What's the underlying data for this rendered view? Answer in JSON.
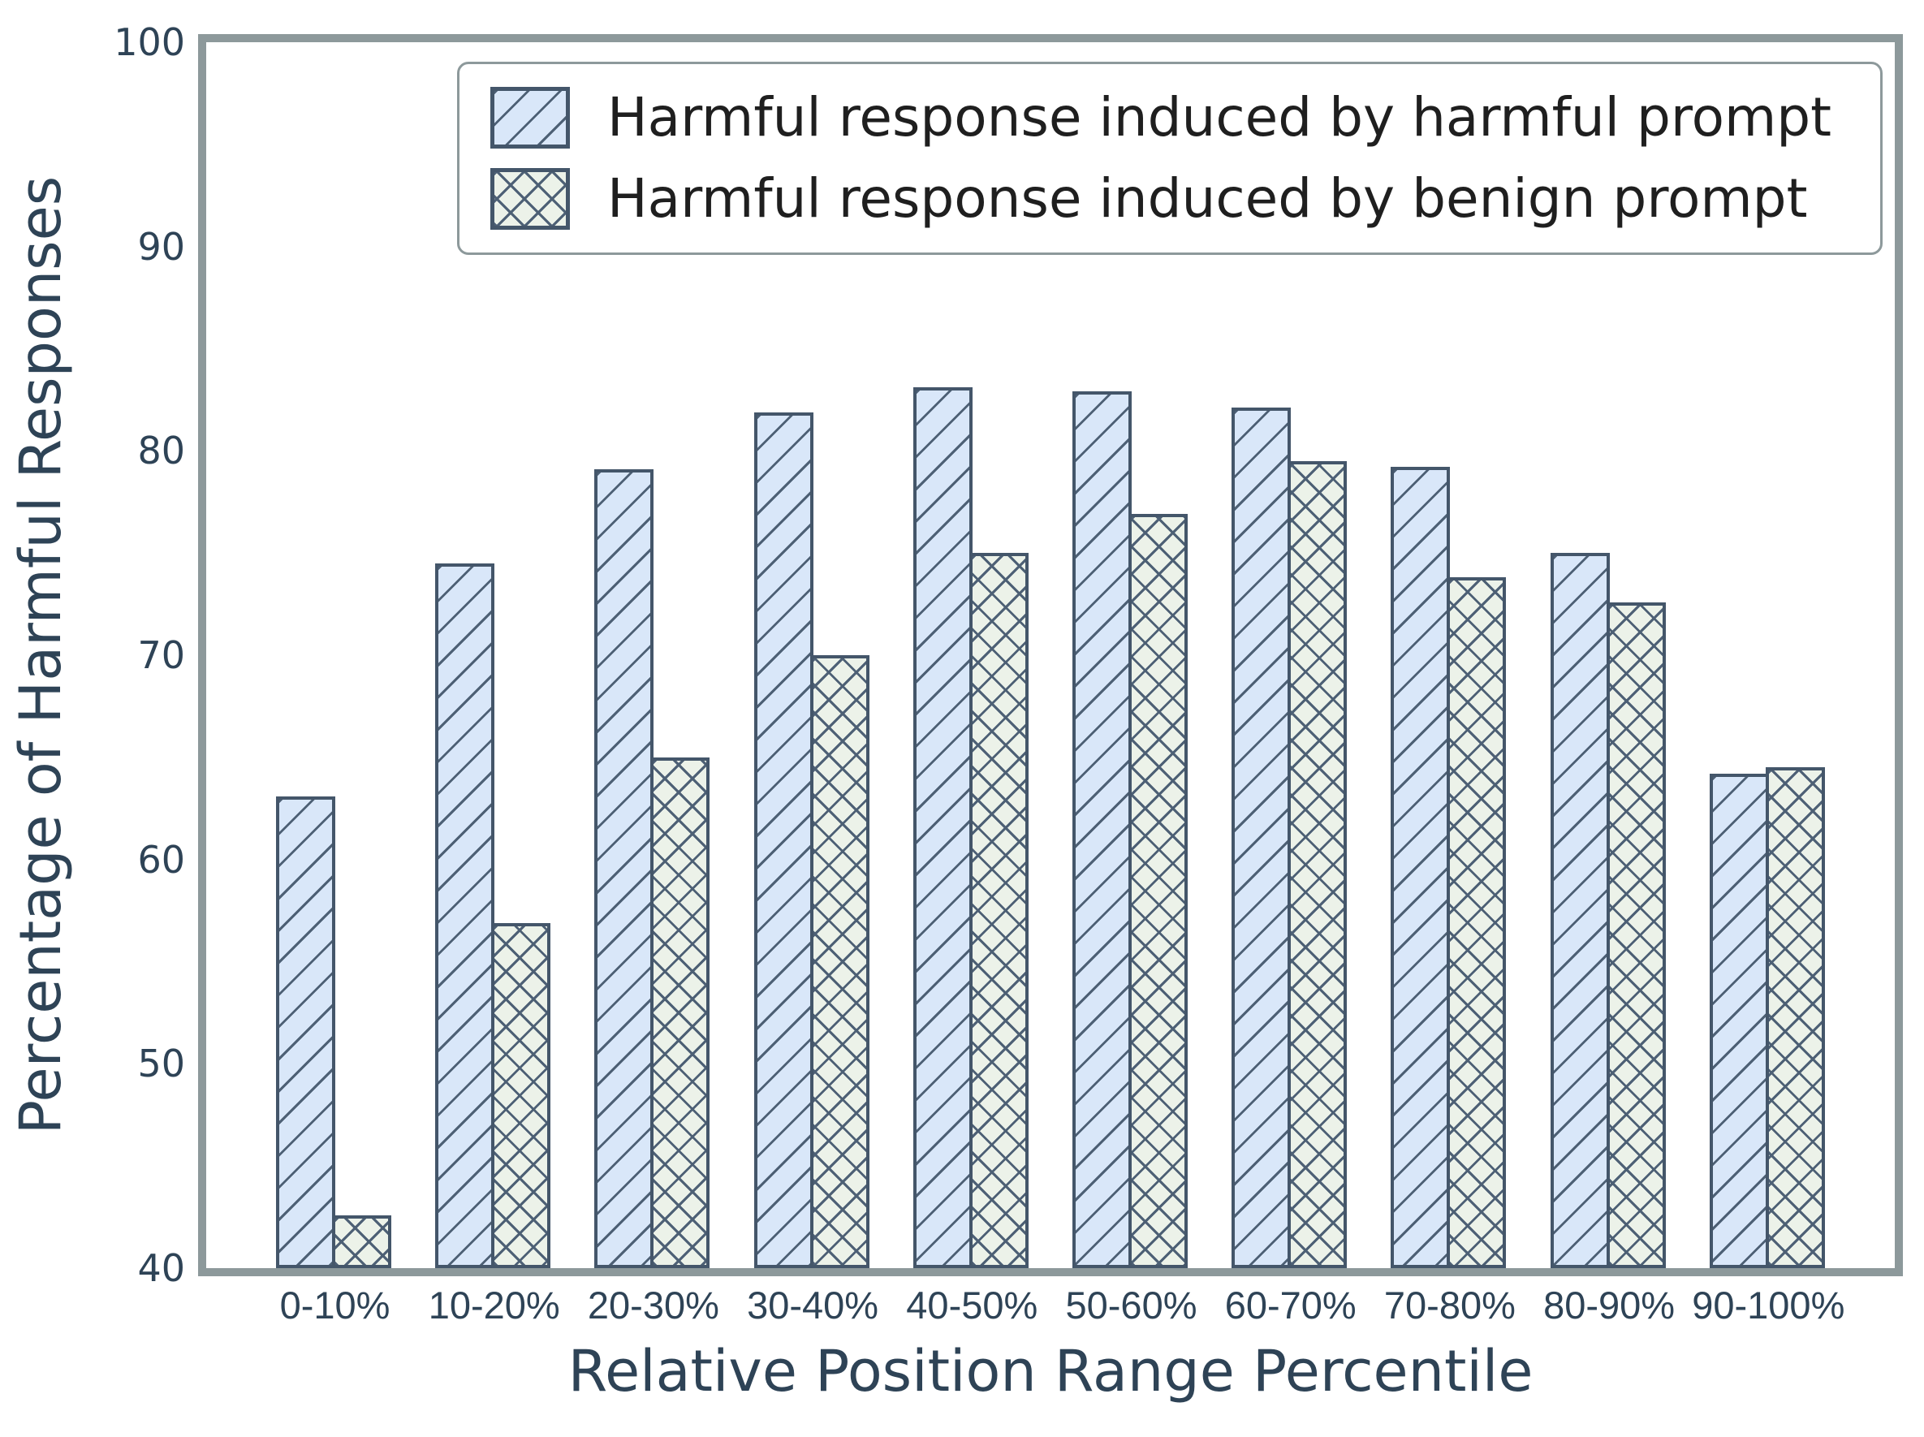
{
  "chart_data": {
    "type": "bar",
    "title": "",
    "xlabel": "Relative Position Range Percentile",
    "ylabel": "Percentage of Harmful Responses",
    "categories": [
      "0-10%",
      "10-20%",
      "20-30%",
      "30-40%",
      "40-50%",
      "50-60%",
      "60-70%",
      "70-80%",
      "80-90%",
      "90-100%"
    ],
    "series": [
      {
        "name": "Harmful response induced by harmful prompt",
        "values": [
          63.1,
          74.5,
          79.1,
          81.9,
          83.1,
          82.9,
          82.1,
          79.2,
          75.0,
          64.2
        ],
        "fill": "#d9e7f9",
        "hatch": "/",
        "hatch_color": "#4d6075",
        "edge_color": "#44566a"
      },
      {
        "name": "Harmful response induced by benign prompt",
        "values": [
          42.6,
          56.9,
          65.0,
          70.0,
          75.0,
          76.9,
          79.5,
          73.8,
          72.6,
          64.5
        ],
        "fill": "#ecf2e9",
        "hatch": "x",
        "hatch_color": "#4d6075",
        "edge_color": "#44566a"
      }
    ],
    "ylim": [
      40,
      100
    ],
    "yticks": [
      40,
      50,
      60,
      70,
      80,
      90,
      100
    ],
    "grid": false,
    "legend_position": "upper center",
    "frame_color": "#8d999b",
    "tick_label_color": "#2e4356",
    "axis_label_color": "#2e4356",
    "legend_text_color": "#1f1f1f",
    "background": "#ffffff"
  }
}
